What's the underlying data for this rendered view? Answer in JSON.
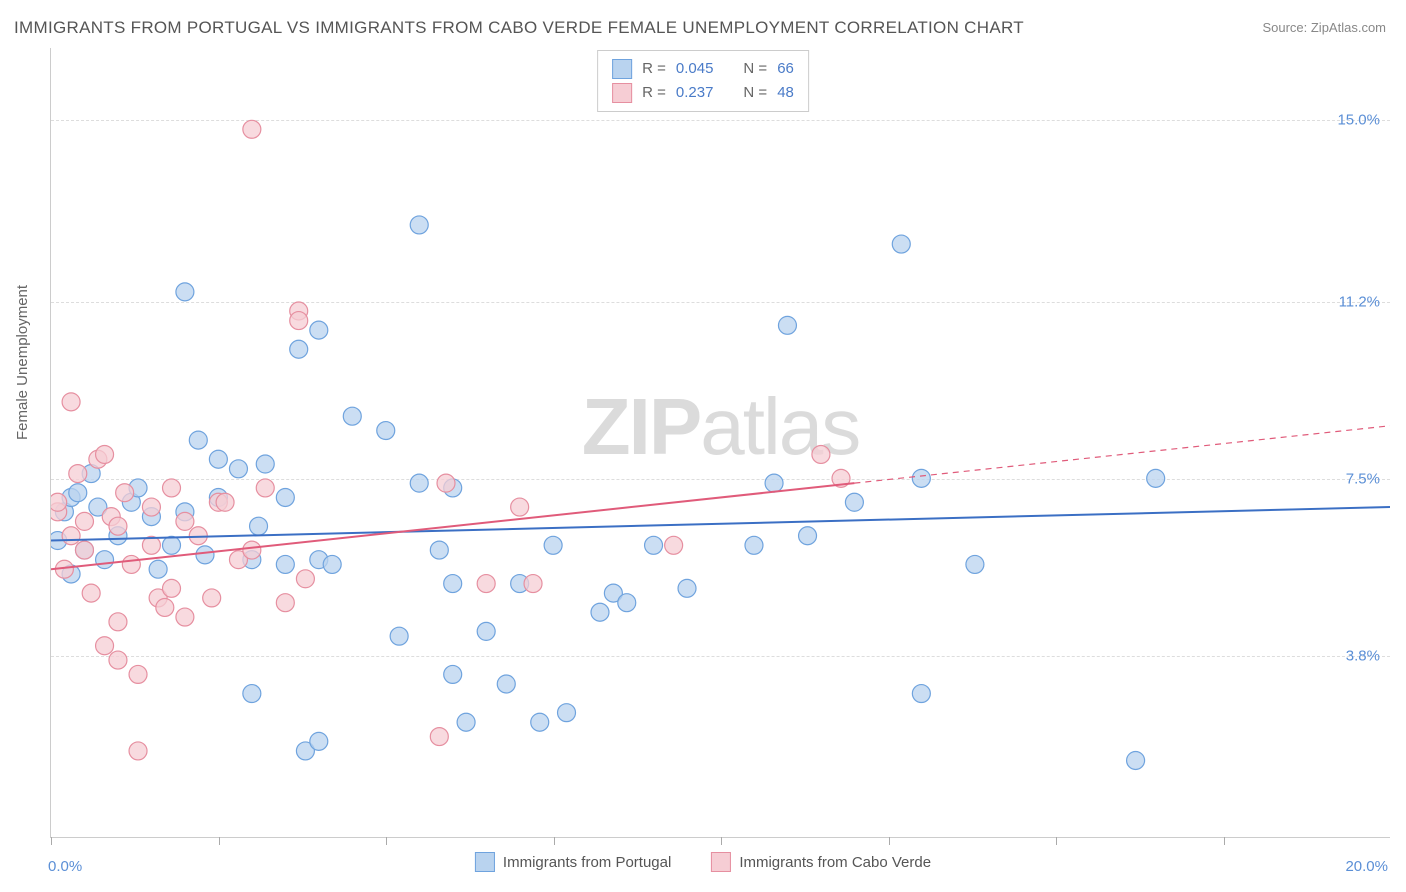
{
  "title": "IMMIGRANTS FROM PORTUGAL VS IMMIGRANTS FROM CABO VERDE FEMALE UNEMPLOYMENT CORRELATION CHART",
  "source": "Source: ZipAtlas.com",
  "y_axis_title": "Female Unemployment",
  "watermark_left": "ZIP",
  "watermark_right": "atlas",
  "chart": {
    "type": "scatter",
    "xlim": [
      0.0,
      20.0
    ],
    "ylim": [
      0.0,
      16.5
    ],
    "x_min_label": "0.0%",
    "x_max_label": "20.0%",
    "y_ticks": [
      {
        "v": 3.8,
        "label": "3.8%"
      },
      {
        "v": 7.5,
        "label": "7.5%"
      },
      {
        "v": 11.2,
        "label": "11.2%"
      },
      {
        "v": 15.0,
        "label": "15.0%"
      }
    ],
    "x_tick_positions": [
      0,
      2.5,
      5.0,
      7.5,
      10.0,
      12.5,
      15.0,
      17.5
    ],
    "background_color": "#ffffff",
    "grid_color": "#dddddd",
    "marker_radius": 9,
    "marker_stroke_width": 1.2,
    "line_width": 2,
    "series": [
      {
        "name": "Immigrants from Portugal",
        "color_fill": "#b9d3ef",
        "color_stroke": "#6fa3de",
        "line_color": "#3b6fc4",
        "R": "0.045",
        "N": "66",
        "trend": {
          "x1": 0.0,
          "y1": 6.2,
          "x2": 20.0,
          "y2": 6.9,
          "dash_from_x": null
        },
        "points": [
          [
            0.1,
            6.2
          ],
          [
            0.2,
            6.8
          ],
          [
            0.3,
            5.5
          ],
          [
            0.3,
            7.1
          ],
          [
            0.4,
            7.2
          ],
          [
            0.5,
            6.0
          ],
          [
            0.6,
            7.6
          ],
          [
            0.7,
            6.9
          ],
          [
            0.8,
            5.8
          ],
          [
            1.0,
            6.3
          ],
          [
            1.2,
            7.0
          ],
          [
            1.3,
            7.3
          ],
          [
            1.5,
            6.7
          ],
          [
            1.6,
            5.6
          ],
          [
            1.8,
            6.1
          ],
          [
            2.0,
            11.4
          ],
          [
            2.0,
            6.8
          ],
          [
            2.2,
            8.3
          ],
          [
            2.3,
            5.9
          ],
          [
            2.5,
            7.1
          ],
          [
            2.5,
            7.9
          ],
          [
            2.8,
            7.7
          ],
          [
            3.0,
            3.0
          ],
          [
            3.0,
            5.8
          ],
          [
            3.1,
            6.5
          ],
          [
            3.2,
            7.8
          ],
          [
            3.5,
            7.1
          ],
          [
            3.5,
            5.7
          ],
          [
            3.7,
            10.2
          ],
          [
            3.8,
            1.8
          ],
          [
            4.0,
            5.8
          ],
          [
            4.0,
            2.0
          ],
          [
            4.0,
            10.6
          ],
          [
            4.2,
            5.7
          ],
          [
            4.5,
            8.8
          ],
          [
            5.0,
            8.5
          ],
          [
            5.2,
            4.2
          ],
          [
            5.5,
            12.8
          ],
          [
            5.5,
            7.4
          ],
          [
            5.8,
            6.0
          ],
          [
            6.0,
            3.4
          ],
          [
            6.0,
            5.3
          ],
          [
            6.0,
            7.3
          ],
          [
            6.2,
            2.4
          ],
          [
            6.5,
            4.3
          ],
          [
            6.8,
            3.2
          ],
          [
            7.0,
            5.3
          ],
          [
            7.3,
            2.4
          ],
          [
            7.5,
            6.1
          ],
          [
            7.7,
            2.6
          ],
          [
            8.2,
            4.7
          ],
          [
            8.4,
            5.1
          ],
          [
            8.6,
            4.9
          ],
          [
            9.0,
            6.1
          ],
          [
            9.5,
            5.2
          ],
          [
            10.5,
            6.1
          ],
          [
            10.8,
            7.4
          ],
          [
            11.0,
            10.7
          ],
          [
            11.3,
            6.3
          ],
          [
            12.0,
            7.0
          ],
          [
            12.7,
            12.4
          ],
          [
            13.0,
            3.0
          ],
          [
            13.0,
            7.5
          ],
          [
            13.8,
            5.7
          ],
          [
            16.2,
            1.6
          ],
          [
            16.5,
            7.5
          ]
        ]
      },
      {
        "name": "Immigrants from Cabo Verde",
        "color_fill": "#f6cdd4",
        "color_stroke": "#e68fa0",
        "line_color": "#e05b7a",
        "R": "0.237",
        "N": "48",
        "trend": {
          "x1": 0.0,
          "y1": 5.6,
          "x2": 20.0,
          "y2": 8.6,
          "dash_from_x": 12.0
        },
        "points": [
          [
            0.1,
            6.8
          ],
          [
            0.1,
            7.0
          ],
          [
            0.2,
            5.6
          ],
          [
            0.3,
            6.3
          ],
          [
            0.3,
            9.1
          ],
          [
            0.4,
            7.6
          ],
          [
            0.5,
            6.0
          ],
          [
            0.5,
            6.6
          ],
          [
            0.6,
            5.1
          ],
          [
            0.7,
            7.9
          ],
          [
            0.8,
            8.0
          ],
          [
            0.8,
            4.0
          ],
          [
            0.9,
            6.7
          ],
          [
            1.0,
            6.5
          ],
          [
            1.0,
            4.5
          ],
          [
            1.0,
            3.7
          ],
          [
            1.1,
            7.2
          ],
          [
            1.2,
            5.7
          ],
          [
            1.3,
            3.4
          ],
          [
            1.3,
            1.8
          ],
          [
            1.5,
            6.1
          ],
          [
            1.5,
            6.9
          ],
          [
            1.6,
            5.0
          ],
          [
            1.7,
            4.8
          ],
          [
            1.8,
            7.3
          ],
          [
            1.8,
            5.2
          ],
          [
            2.0,
            6.6
          ],
          [
            2.0,
            4.6
          ],
          [
            2.2,
            6.3
          ],
          [
            2.4,
            5.0
          ],
          [
            2.5,
            7.0
          ],
          [
            2.6,
            7.0
          ],
          [
            2.8,
            5.8
          ],
          [
            3.0,
            6.0
          ],
          [
            3.0,
            14.8
          ],
          [
            3.2,
            7.3
          ],
          [
            3.5,
            4.9
          ],
          [
            3.7,
            11.0
          ],
          [
            3.7,
            10.8
          ],
          [
            3.8,
            5.4
          ],
          [
            5.8,
            2.1
          ],
          [
            5.9,
            7.4
          ],
          [
            6.5,
            5.3
          ],
          [
            7.0,
            6.9
          ],
          [
            7.2,
            5.3
          ],
          [
            9.3,
            6.1
          ],
          [
            11.5,
            8.0
          ],
          [
            11.8,
            7.5
          ]
        ]
      }
    ]
  },
  "legend_top": {
    "R_label": "R =",
    "N_label": "N ="
  },
  "legend_bottom": {
    "items": [
      "Immigrants from Portugal",
      "Immigrants from Cabo Verde"
    ]
  }
}
